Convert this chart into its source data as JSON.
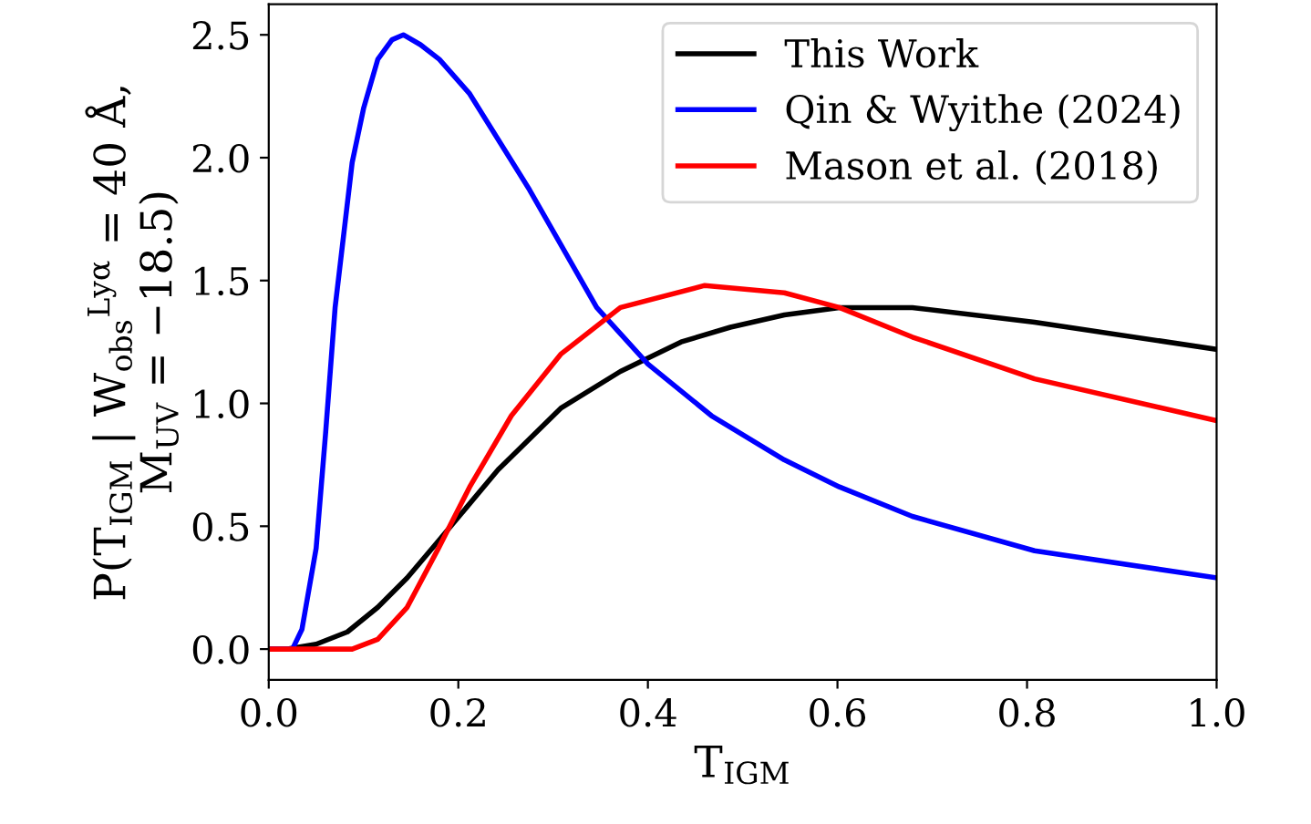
{
  "chart_data": {
    "type": "line",
    "xlabel": "T$_{IGM}$",
    "ylabel": "P(T$_{IGM}$ | W$_{obs}$$^{Lyα}$ = 40 Å,\nM$_{UV}$ = −18.5)",
    "xlim": [
      0.0,
      1.0
    ],
    "ylim": [
      -0.125,
      2.625
    ],
    "xticks": [
      {
        "value": 0.0,
        "label": "0.0"
      },
      0.2,
      0.4,
      0.6,
      0.8,
      {
        "value": 1.0,
        "label": "1.0"
      }
    ],
    "yticks": [
      {
        "value": 0.0,
        "label": "0.0"
      },
      0.5,
      {
        "value": 1.0,
        "label": "1.0"
      },
      1.5,
      {
        "value": 2.0,
        "label": "2.0"
      },
      2.5
    ],
    "grid": false,
    "legend": "top right",
    "line_style": "solid",
    "marker": "none",
    "series": [
      {
        "name": "This Work",
        "color": "#000000",
        "x": [
          0.0,
          0.02,
          0.05,
          0.083,
          0.115,
          0.146,
          0.179,
          0.242,
          0.308,
          0.371,
          0.435,
          0.487,
          0.544,
          0.602,
          0.679,
          0.808,
          1.0
        ],
        "values": [
          0.0,
          0.0,
          0.02,
          0.07,
          0.17,
          0.29,
          0.44,
          0.73,
          0.98,
          1.13,
          1.25,
          1.31,
          1.36,
          1.39,
          1.39,
          1.33,
          1.22
        ]
      },
      {
        "name": "Qin & Wyithe (2024)",
        "color": "#0000ff",
        "x": [
          0.0,
          0.025,
          0.035,
          0.05,
          0.06,
          0.07,
          0.088,
          0.1,
          0.115,
          0.13,
          0.142,
          0.16,
          0.18,
          0.212,
          0.275,
          0.346,
          0.4,
          0.467,
          0.544,
          0.602,
          0.679,
          0.808,
          1.0
        ],
        "values": [
          0.0,
          0.0,
          0.08,
          0.41,
          0.88,
          1.39,
          1.98,
          2.2,
          2.4,
          2.48,
          2.5,
          2.46,
          2.4,
          2.26,
          1.87,
          1.39,
          1.16,
          0.95,
          0.77,
          0.66,
          0.54,
          0.4,
          0.29
        ]
      },
      {
        "name": "Mason et al. (2018)",
        "color": "#ff0000",
        "x": [
          0.0,
          0.088,
          0.115,
          0.146,
          0.179,
          0.212,
          0.256,
          0.308,
          0.371,
          0.46,
          0.544,
          0.602,
          0.679,
          0.808,
          1.0
        ],
        "values": [
          0.0,
          0.0,
          0.04,
          0.17,
          0.41,
          0.66,
          0.95,
          1.2,
          1.39,
          1.48,
          1.45,
          1.39,
          1.27,
          1.1,
          0.93
        ]
      }
    ]
  }
}
